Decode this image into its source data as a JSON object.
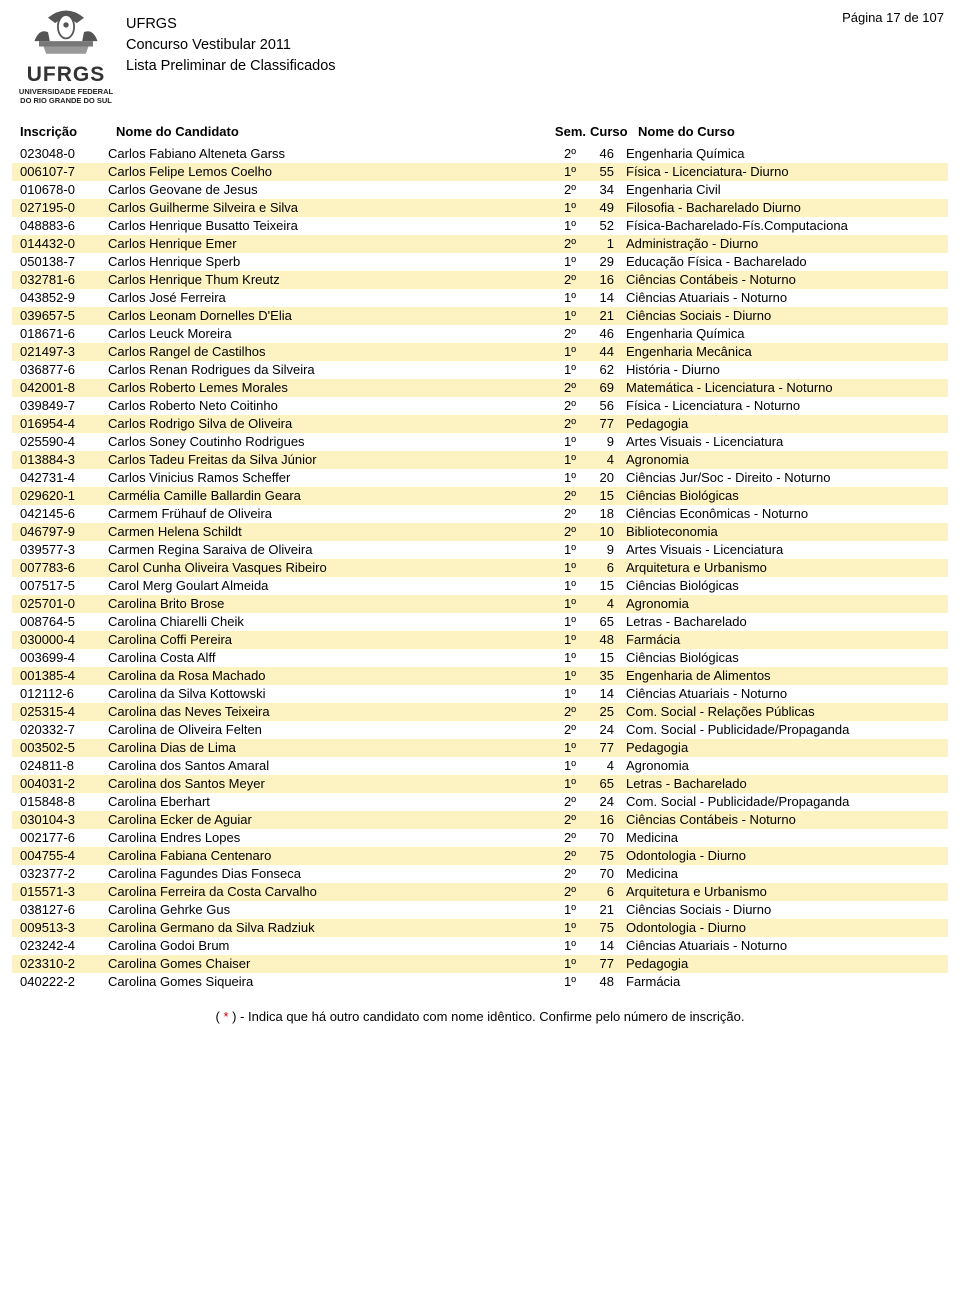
{
  "header": {
    "org_main": "UFRGS",
    "org_sub1": "UNIVERSIDADE FEDERAL",
    "org_sub2": "DO RIO GRANDE DO SUL",
    "line1": "UFRGS",
    "line2": "Concurso Vestibular 2011",
    "line3": "Lista Preliminar de Classificados",
    "page_label": "Página 17 de 107"
  },
  "columns": {
    "inscricao": "Inscrição",
    "nome": "Nome do Candidato",
    "sem": "Sem.",
    "curso": "Curso",
    "nomecurso": "Nome do Curso"
  },
  "style": {
    "highlight_bg": "#fdf3c2",
    "text_color": "#000000",
    "page_bg": "#ffffff",
    "font_family": "Arial",
    "base_font_size": 13
  },
  "rows": [
    {
      "hl": false,
      "insc": "023048-0",
      "nome": "Carlos Fabiano Alteneta Garss",
      "sem": "2º",
      "curso": "46",
      "nomecurso": "Engenharia Química"
    },
    {
      "hl": true,
      "insc": "006107-7",
      "nome": "Carlos Felipe Lemos Coelho",
      "sem": "1º",
      "curso": "55",
      "nomecurso": "Física - Licenciatura- Diurno"
    },
    {
      "hl": false,
      "insc": "010678-0",
      "nome": "Carlos Geovane de Jesus",
      "sem": "2º",
      "curso": "34",
      "nomecurso": "Engenharia Civil"
    },
    {
      "hl": true,
      "insc": "027195-0",
      "nome": "Carlos Guilherme Silveira e Silva",
      "sem": "1º",
      "curso": "49",
      "nomecurso": "Filosofia - Bacharelado Diurno"
    },
    {
      "hl": false,
      "insc": "048883-6",
      "nome": "Carlos Henrique Busatto Teixeira",
      "sem": "1º",
      "curso": "52",
      "nomecurso": "Física-Bacharelado-Fís.Computaciona"
    },
    {
      "hl": true,
      "insc": "014432-0",
      "nome": "Carlos Henrique Emer",
      "sem": "2º",
      "curso": "1",
      "nomecurso": "Administração - Diurno"
    },
    {
      "hl": false,
      "insc": "050138-7",
      "nome": "Carlos Henrique Sperb",
      "sem": "1º",
      "curso": "29",
      "nomecurso": "Educação Física - Bacharelado"
    },
    {
      "hl": true,
      "insc": "032781-6",
      "nome": "Carlos Henrique Thum Kreutz",
      "sem": "2º",
      "curso": "16",
      "nomecurso": "Ciências Contábeis - Noturno"
    },
    {
      "hl": false,
      "insc": "043852-9",
      "nome": "Carlos José Ferreira",
      "sem": "1º",
      "curso": "14",
      "nomecurso": "Ciências Atuariais - Noturno"
    },
    {
      "hl": true,
      "insc": "039657-5",
      "nome": "Carlos Leonam Dornelles D'Elia",
      "sem": "1º",
      "curso": "21",
      "nomecurso": "Ciências Sociais - Diurno"
    },
    {
      "hl": false,
      "insc": "018671-6",
      "nome": "Carlos Leuck Moreira",
      "sem": "2º",
      "curso": "46",
      "nomecurso": "Engenharia Química"
    },
    {
      "hl": true,
      "insc": "021497-3",
      "nome": "Carlos Rangel de Castilhos",
      "sem": "1º",
      "curso": "44",
      "nomecurso": "Engenharia Mecânica"
    },
    {
      "hl": false,
      "insc": "036877-6",
      "nome": "Carlos Renan Rodrigues da Silveira",
      "sem": "1º",
      "curso": "62",
      "nomecurso": "História - Diurno"
    },
    {
      "hl": true,
      "insc": "042001-8",
      "nome": "Carlos Roberto Lemes Morales",
      "sem": "2º",
      "curso": "69",
      "nomecurso": "Matemática - Licenciatura - Noturno"
    },
    {
      "hl": false,
      "insc": "039849-7",
      "nome": "Carlos Roberto Neto Coitinho",
      "sem": "2º",
      "curso": "56",
      "nomecurso": "Física - Licenciatura - Noturno"
    },
    {
      "hl": true,
      "insc": "016954-4",
      "nome": "Carlos Rodrigo Silva de Oliveira",
      "sem": "2º",
      "curso": "77",
      "nomecurso": "Pedagogia"
    },
    {
      "hl": false,
      "insc": "025590-4",
      "nome": "Carlos Soney Coutinho Rodrigues",
      "sem": "1º",
      "curso": "9",
      "nomecurso": "Artes Visuais - Licenciatura"
    },
    {
      "hl": true,
      "insc": "013884-3",
      "nome": "Carlos Tadeu Freitas da Silva Júnior",
      "sem": "1º",
      "curso": "4",
      "nomecurso": "Agronomia"
    },
    {
      "hl": false,
      "insc": "042731-4",
      "nome": "Carlos Vinicius Ramos Scheffer",
      "sem": "1º",
      "curso": "20",
      "nomecurso": "Ciências Jur/Soc - Direito - Noturno"
    },
    {
      "hl": true,
      "insc": "029620-1",
      "nome": "Carmélia Camille Ballardin Geara",
      "sem": "2º",
      "curso": "15",
      "nomecurso": "Ciências Biológicas"
    },
    {
      "hl": false,
      "insc": "042145-6",
      "nome": "Carmem Frühauf de Oliveira",
      "sem": "2º",
      "curso": "18",
      "nomecurso": "Ciências Econômicas - Noturno"
    },
    {
      "hl": true,
      "insc": "046797-9",
      "nome": "Carmen Helena Schildt",
      "sem": "2º",
      "curso": "10",
      "nomecurso": "Biblioteconomia"
    },
    {
      "hl": false,
      "insc": "039577-3",
      "nome": "Carmen Regina Saraiva de Oliveira",
      "sem": "1º",
      "curso": "9",
      "nomecurso": "Artes Visuais - Licenciatura"
    },
    {
      "hl": true,
      "insc": "007783-6",
      "nome": "Carol Cunha Oliveira Vasques Ribeiro",
      "sem": "1º",
      "curso": "6",
      "nomecurso": "Arquitetura e Urbanismo"
    },
    {
      "hl": false,
      "insc": "007517-5",
      "nome": "Carol Merg Goulart Almeida",
      "sem": "1º",
      "curso": "15",
      "nomecurso": "Ciências Biológicas"
    },
    {
      "hl": true,
      "insc": "025701-0",
      "nome": "Carolina Brito Brose",
      "sem": "1º",
      "curso": "4",
      "nomecurso": "Agronomia"
    },
    {
      "hl": false,
      "insc": "008764-5",
      "nome": "Carolina Chiarelli Cheik",
      "sem": "1º",
      "curso": "65",
      "nomecurso": "Letras - Bacharelado"
    },
    {
      "hl": true,
      "insc": "030000-4",
      "nome": "Carolina Coffi Pereira",
      "sem": "1º",
      "curso": "48",
      "nomecurso": "Farmácia"
    },
    {
      "hl": false,
      "insc": "003699-4",
      "nome": "Carolina Costa Alff",
      "sem": "1º",
      "curso": "15",
      "nomecurso": "Ciências Biológicas"
    },
    {
      "hl": true,
      "insc": "001385-4",
      "nome": "Carolina da Rosa Machado",
      "sem": "1º",
      "curso": "35",
      "nomecurso": "Engenharia de Alimentos"
    },
    {
      "hl": false,
      "insc": "012112-6",
      "nome": "Carolina da Silva Kottowski",
      "sem": "1º",
      "curso": "14",
      "nomecurso": "Ciências Atuariais - Noturno"
    },
    {
      "hl": true,
      "insc": "025315-4",
      "nome": "Carolina das Neves Teixeira",
      "sem": "2º",
      "curso": "25",
      "nomecurso": "Com. Social - Relações Públicas"
    },
    {
      "hl": false,
      "insc": "020332-7",
      "nome": "Carolina de Oliveira Felten",
      "sem": "2º",
      "curso": "24",
      "nomecurso": "Com. Social - Publicidade/Propaganda"
    },
    {
      "hl": true,
      "insc": "003502-5",
      "nome": "Carolina Dias de Lima",
      "sem": "1º",
      "curso": "77",
      "nomecurso": "Pedagogia"
    },
    {
      "hl": false,
      "insc": "024811-8",
      "nome": "Carolina dos Santos Amaral",
      "sem": "1º",
      "curso": "4",
      "nomecurso": "Agronomia"
    },
    {
      "hl": true,
      "insc": "004031-2",
      "nome": "Carolina dos Santos Meyer",
      "sem": "1º",
      "curso": "65",
      "nomecurso": "Letras - Bacharelado"
    },
    {
      "hl": false,
      "insc": "015848-8",
      "nome": "Carolina Eberhart",
      "sem": "2º",
      "curso": "24",
      "nomecurso": "Com. Social - Publicidade/Propaganda"
    },
    {
      "hl": true,
      "insc": "030104-3",
      "nome": "Carolina Ecker de Aguiar",
      "sem": "2º",
      "curso": "16",
      "nomecurso": "Ciências Contábeis - Noturno"
    },
    {
      "hl": false,
      "insc": "002177-6",
      "nome": "Carolina Endres Lopes",
      "sem": "2º",
      "curso": "70",
      "nomecurso": "Medicina"
    },
    {
      "hl": true,
      "insc": "004755-4",
      "nome": "Carolina Fabiana Centenaro",
      "sem": "2º",
      "curso": "75",
      "nomecurso": "Odontologia - Diurno"
    },
    {
      "hl": false,
      "insc": "032377-2",
      "nome": "Carolina Fagundes Dias Fonseca",
      "sem": "2º",
      "curso": "70",
      "nomecurso": "Medicina"
    },
    {
      "hl": true,
      "insc": "015571-3",
      "nome": "Carolina Ferreira da Costa Carvalho",
      "sem": "2º",
      "curso": "6",
      "nomecurso": "Arquitetura e Urbanismo"
    },
    {
      "hl": false,
      "insc": "038127-6",
      "nome": "Carolina Gehrke Gus",
      "sem": "1º",
      "curso": "21",
      "nomecurso": "Ciências Sociais - Diurno"
    },
    {
      "hl": true,
      "insc": "009513-3",
      "nome": "Carolina Germano da Silva Radziuk",
      "sem": "1º",
      "curso": "75",
      "nomecurso": "Odontologia - Diurno"
    },
    {
      "hl": false,
      "insc": "023242-4",
      "nome": "Carolina Godoi Brum",
      "sem": "1º",
      "curso": "14",
      "nomecurso": "Ciências Atuariais - Noturno"
    },
    {
      "hl": true,
      "insc": "023310-2",
      "nome": "Carolina Gomes Chaiser",
      "sem": "1º",
      "curso": "77",
      "nomecurso": "Pedagogia"
    },
    {
      "hl": false,
      "insc": "040222-2",
      "nome": "Carolina Gomes Siqueira",
      "sem": "1º",
      "curso": "48",
      "nomecurso": "Farmácia"
    }
  ],
  "footer": {
    "star": "*",
    "text_before": "( ",
    "text_after": " ) - Indica que há outro candidato com nome idêntico. Confirme pelo número de inscrição."
  }
}
